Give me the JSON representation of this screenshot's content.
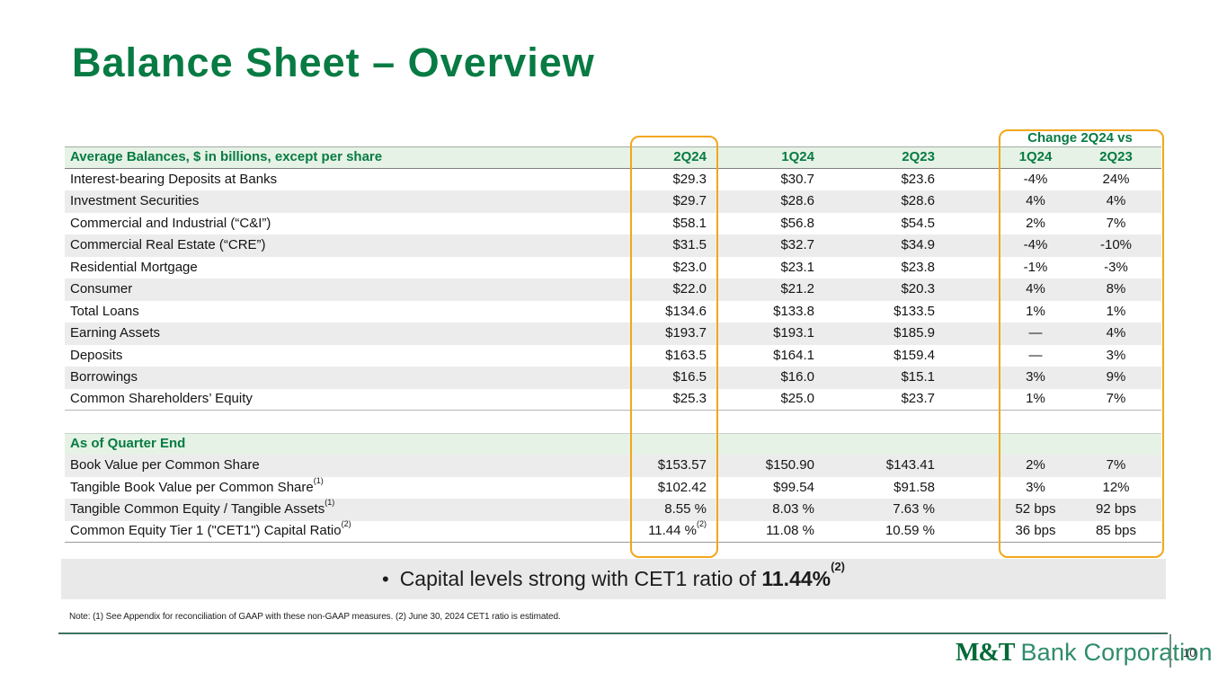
{
  "slide": {
    "title": "Balance Sheet – Overview",
    "page_number": "10"
  },
  "table": {
    "change_title": "Change 2Q24 vs",
    "header": {
      "label": "Average Balances, $ in billions, except per share",
      "columns": [
        "2Q24",
        "1Q24",
        "2Q23"
      ],
      "change_columns": [
        "1Q24",
        "2Q23"
      ]
    },
    "rows": [
      {
        "label": "Interest-bearing Deposits at Banks",
        "values": [
          "$29.3",
          "$30.7",
          "$23.6"
        ],
        "changes": [
          "-4%",
          "24%"
        ]
      },
      {
        "label": "Investment Securities",
        "values": [
          "$29.7",
          "$28.6",
          "$28.6"
        ],
        "changes": [
          "4%",
          "4%"
        ]
      },
      {
        "label": "Commercial and Industrial (“C&I”)",
        "values": [
          "$58.1",
          "$56.8",
          "$54.5"
        ],
        "changes": [
          "2%",
          "7%"
        ]
      },
      {
        "label": "Commercial Real Estate (“CRE”)",
        "values": [
          "$31.5",
          "$32.7",
          "$34.9"
        ],
        "changes": [
          "-4%",
          "-10%"
        ]
      },
      {
        "label": "Residential Mortgage",
        "values": [
          "$23.0",
          "$23.1",
          "$23.8"
        ],
        "changes": [
          "-1%",
          "-3%"
        ]
      },
      {
        "label": "Consumer",
        "values": [
          "$22.0",
          "$21.2",
          "$20.3"
        ],
        "changes": [
          "4%",
          "8%"
        ]
      },
      {
        "label": "Total Loans",
        "values": [
          "$134.6",
          "$133.8",
          "$133.5"
        ],
        "changes": [
          "1%",
          "1%"
        ]
      },
      {
        "label": "Earning Assets",
        "values": [
          "$193.7",
          "$193.1",
          "$185.9"
        ],
        "changes": [
          "—",
          "4%"
        ]
      },
      {
        "label": "Deposits",
        "values": [
          "$163.5",
          "$164.1",
          "$159.4"
        ],
        "changes": [
          "—",
          "3%"
        ]
      },
      {
        "label": "Borrowings",
        "values": [
          "$16.5",
          "$16.0",
          "$15.1"
        ],
        "changes": [
          "3%",
          "9%"
        ]
      },
      {
        "label": "Common Shareholders’ Equity",
        "values": [
          "$25.3",
          "$25.0",
          "$23.7"
        ],
        "changes": [
          "1%",
          "7%"
        ]
      }
    ],
    "section2": {
      "label": "As of Quarter End",
      "rows": [
        {
          "label": "Book Value per Common Share",
          "values": [
            "$153.57",
            "$150.90",
            "$143.41"
          ],
          "changes": [
            "2%",
            "7%"
          ]
        },
        {
          "label": "Tangible Book Value per Common Share",
          "sup": "(1)",
          "values": [
            "$102.42",
            "$99.54",
            "$91.58"
          ],
          "changes": [
            "3%",
            "12%"
          ]
        },
        {
          "label": "Tangible Common Equity / Tangible Assets",
          "sup": "(1)",
          "values": [
            "8.55 %",
            "8.03 %",
            "7.63 %"
          ],
          "changes": [
            "52 bps",
            "92 bps"
          ]
        },
        {
          "label": "Common Equity Tier 1 (\"CET1\") Capital Ratio",
          "sup": "(2)",
          "values": [
            {
              "v": "11.44 %",
              "sup": "(2)"
            },
            "11.08 %",
            "10.59 %"
          ],
          "changes": [
            "36 bps",
            "85 bps"
          ]
        }
      ]
    }
  },
  "callout": {
    "bullet": "•",
    "text": "Capital levels strong with CET1 ratio of",
    "value": "11.44%",
    "value_sup": "(2)"
  },
  "note": "Note: (1) See Appendix for reconciliation of GAAP with these non-GAAP measures. (2) June 30, 2024 CET1 ratio is estimated.",
  "footer": {
    "logo_bold": "M&T",
    "logo_text": "Bank Corporation",
    "page_number": "10"
  },
  "colors": {
    "brand_green": "#077B43",
    "logo_green_dark": "#046A38",
    "logo_green_light": "#2F8C6A",
    "header_bg": "#E6F2E5",
    "row_shade": "#ECECEC",
    "highlight_orange": "#F2A71B",
    "banner_bg": "#E9E9E9",
    "footer_rule": "#3E7263"
  }
}
